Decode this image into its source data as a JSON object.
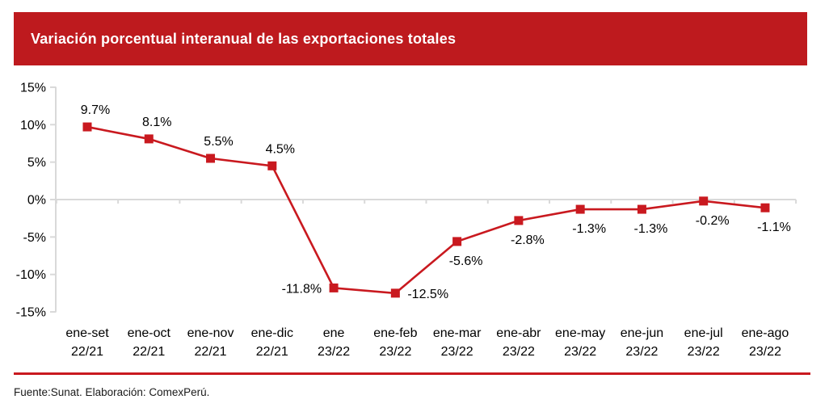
{
  "header": {
    "title": "Variación porcentual interanual de las exportaciones totales",
    "bg_color": "#BE1A1E",
    "text_color": "#FFFFFF"
  },
  "chart_data": {
    "type": "line",
    "title": "Variación porcentual interanual de las exportaciones totales",
    "categories": [
      [
        "ene-set",
        "22/21"
      ],
      [
        "ene-oct",
        "22/21"
      ],
      [
        "ene-nov",
        "22/21"
      ],
      [
        "ene-dic",
        "22/21"
      ],
      [
        "ene",
        "23/22"
      ],
      [
        "ene-feb",
        "23/22"
      ],
      [
        "ene-mar",
        "23/22"
      ],
      [
        "ene-abr",
        "23/22"
      ],
      [
        "ene-may",
        "23/22"
      ],
      [
        "ene-jun",
        "23/22"
      ],
      [
        "ene-jul",
        "23/22"
      ],
      [
        "ene-ago",
        "23/22"
      ]
    ],
    "values": [
      9.7,
      8.1,
      5.5,
      4.5,
      -11.8,
      -12.5,
      -5.6,
      -2.8,
      -1.3,
      -1.3,
      -0.2,
      -1.1
    ],
    "point_labels": [
      "9.7%",
      "8.1%",
      "5.5%",
      "4.5%",
      "-11.8%",
      "-12.5%",
      "-5.6%",
      "-2.8%",
      "-1.3%",
      "-1.3%",
      "-0.2%",
      "-1.1%"
    ],
    "xlabel": "",
    "ylabel": "",
    "ylim": [
      -15,
      15
    ],
    "ytick_step": 5,
    "ytick_labels": [
      "15%",
      "10%",
      "5%",
      "0%",
      "-5%",
      "-10%",
      "-15%"
    ],
    "grid": "zero-line-only",
    "legend": "none",
    "line_color": "#C9191F",
    "marker_shape": "square",
    "axis_color": "#D9D9D9",
    "label_color": "#000000",
    "label_positions": [
      "above",
      "above",
      "above",
      "above",
      "left",
      "right",
      "below",
      "below",
      "below",
      "below",
      "below",
      "below"
    ]
  },
  "footer": {
    "source_text": "Fuente:Sunat. Elaboración: ComexPerú.",
    "divider_color": "#C9191F"
  }
}
